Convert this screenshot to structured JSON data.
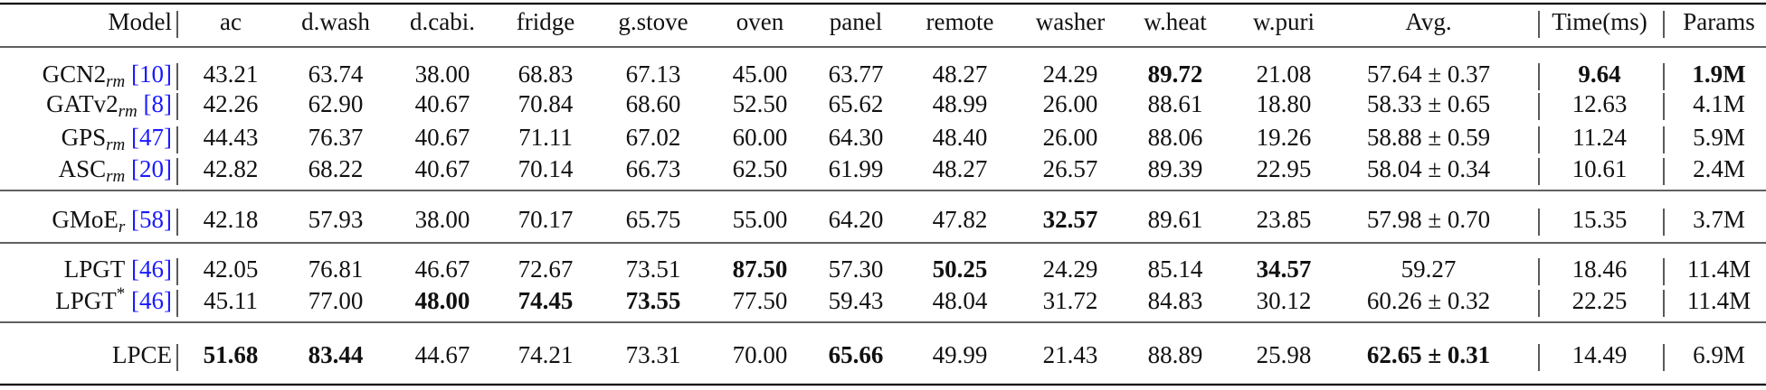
{
  "table": {
    "header": [
      "Model",
      "ac",
      "d.wash",
      "d.cabi.",
      "fridge",
      "g.stove",
      "oven",
      "panel",
      "remote",
      "washer",
      "w.heat",
      "w.puri",
      "Avg.",
      "Time(ms)",
      "Params"
    ],
    "groups": [
      {
        "rows": [
          {
            "model": {
              "name": "GCN2",
              "sub": "rm",
              "ref": "[10]"
            },
            "cells": [
              "43.21",
              "63.74",
              "38.00",
              "68.83",
              "67.13",
              "45.00",
              "63.77",
              "48.27",
              "24.29",
              "89.72",
              "21.08",
              "57.64 ± 0.37",
              "9.64",
              "1.9M"
            ],
            "bold": [
              9,
              12,
              13
            ]
          },
          {
            "model": {
              "name": "GATv2",
              "sub": "rm",
              "ref": "[8]"
            },
            "cells": [
              "42.26",
              "62.90",
              "40.67",
              "70.84",
              "68.60",
              "52.50",
              "65.62",
              "48.99",
              "26.00",
              "88.61",
              "18.80",
              "58.33 ± 0.65",
              "12.63",
              "4.1M"
            ],
            "bold": []
          },
          {
            "model": {
              "name": "GPS",
              "sub": "rm",
              "ref": "[47]"
            },
            "cells": [
              "44.43",
              "76.37",
              "40.67",
              "71.11",
              "67.02",
              "60.00",
              "64.30",
              "48.40",
              "26.00",
              "88.06",
              "19.26",
              "58.88 ± 0.59",
              "11.24",
              "5.9M"
            ],
            "bold": []
          },
          {
            "model": {
              "name": "ASC",
              "sub": "rm",
              "ref": "[20]"
            },
            "cells": [
              "42.82",
              "68.22",
              "40.67",
              "70.14",
              "66.73",
              "62.50",
              "61.99",
              "48.27",
              "26.57",
              "89.39",
              "22.95",
              "58.04 ± 0.34",
              "10.61",
              "2.4M"
            ],
            "bold": []
          }
        ]
      },
      {
        "rows": [
          {
            "model": {
              "name": "GMoE",
              "sub": "r",
              "ref": "[58]"
            },
            "cells": [
              "42.18",
              "57.93",
              "38.00",
              "70.17",
              "65.75",
              "55.00",
              "64.20",
              "47.82",
              "32.57",
              "89.61",
              "23.85",
              "57.98 ± 0.70",
              "15.35",
              "3.7M"
            ],
            "bold": [
              8
            ]
          }
        ]
      },
      {
        "rows": [
          {
            "model": {
              "name": "LPGT",
              "ref": "[46]"
            },
            "cells": [
              "42.05",
              "76.81",
              "46.67",
              "72.67",
              "73.51",
              "87.50",
              "57.30",
              "50.25",
              "24.29",
              "85.14",
              "34.57",
              "59.27",
              "18.46",
              "11.4M"
            ],
            "bold": [
              5,
              7,
              10
            ]
          },
          {
            "model": {
              "name": "LPGT",
              "sup": "*",
              "ref": "[46]"
            },
            "cells": [
              "45.11",
              "77.00",
              "48.00",
              "74.45",
              "73.55",
              "77.50",
              "59.43",
              "48.04",
              "31.72",
              "84.83",
              "30.12",
              "60.26 ± 0.32",
              "22.25",
              "11.4M"
            ],
            "bold": [
              2,
              3,
              4
            ]
          }
        ]
      },
      {
        "rows": [
          {
            "model": {
              "name": "LPCE"
            },
            "cells": [
              "51.68",
              "83.44",
              "44.67",
              "74.21",
              "73.31",
              "70.00",
              "65.66",
              "49.99",
              "21.43",
              "88.89",
              "25.98",
              "62.65 ± 0.31",
              "14.49",
              "6.9M"
            ],
            "bold": [
              0,
              1,
              6,
              11
            ]
          }
        ]
      }
    ]
  }
}
